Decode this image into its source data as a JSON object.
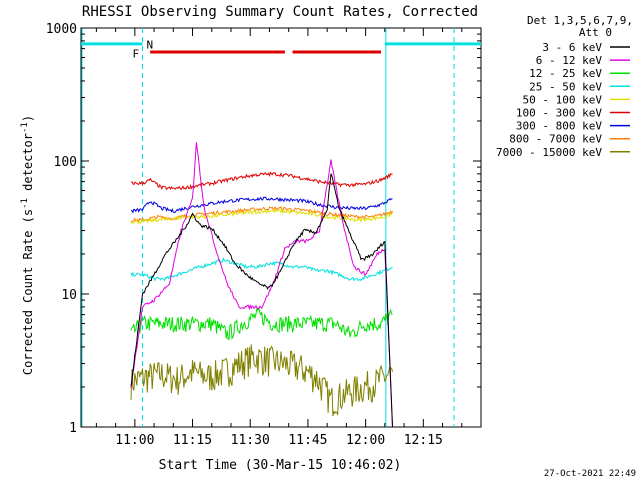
{
  "chart_data": {
    "type": "line",
    "title": "RHESSI Observing Summary Count Rates, Corrected",
    "xlabel": "Start Time (30-Mar-15 10:46:02)",
    "ylabel_main": "Corrected Count Rate (s",
    "ylabel_sup1": "-1",
    "ylabel_mid": " detector",
    "ylabel_sup2": "-1",
    "ylabel_end": ")",
    "yscale": "log",
    "ylim": [
      1,
      1000
    ],
    "xlim": [
      "10:46",
      "12:30"
    ],
    "y_ticks": [
      {
        "value": 1,
        "label": "1"
      },
      {
        "value": 10,
        "label": "10"
      },
      {
        "value": 100,
        "label": "100"
      },
      {
        "value": 1000,
        "label": "1000"
      }
    ],
    "x_ticks": [
      {
        "value": "11:00",
        "label": "11:00"
      },
      {
        "value": "11:15",
        "label": "11:15"
      },
      {
        "value": "11:30",
        "label": "11:30"
      },
      {
        "value": "11:45",
        "label": "11:45"
      },
      {
        "value": "12:00",
        "label": "12:00"
      },
      {
        "value": "12:15",
        "label": "12:15"
      }
    ],
    "legend_header": [
      "Det 1,3,5,6,7,9,",
      "Att 0"
    ],
    "legend_position": "right",
    "series": [
      {
        "name": "3 - 6 keV",
        "color": "#000000",
        "points": [
          [
            "10:59",
            2
          ],
          [
            "11:02",
            10
          ],
          [
            "11:05",
            14
          ],
          [
            "11:08",
            20
          ],
          [
            "11:11",
            26
          ],
          [
            "11:14",
            35
          ],
          [
            "11:15",
            40
          ],
          [
            "11:17",
            33
          ],
          [
            "11:20",
            31
          ],
          [
            "11:23",
            24
          ],
          [
            "11:26",
            17
          ],
          [
            "11:29",
            14
          ],
          [
            "11:32",
            12
          ],
          [
            "11:35",
            11
          ],
          [
            "11:38",
            15
          ],
          [
            "11:41",
            23
          ],
          [
            "11:44",
            30
          ],
          [
            "11:47",
            29
          ],
          [
            "11:50",
            42
          ],
          [
            "11:51",
            82
          ],
          [
            "11:53",
            45
          ],
          [
            "11:56",
            28
          ],
          [
            "11:59",
            18
          ],
          [
            "12:02",
            20
          ],
          [
            "12:05",
            25
          ],
          [
            "12:07",
            1
          ]
        ]
      },
      {
        "name": "6 - 12 keV",
        "color": "#e000e0",
        "points": [
          [
            "10:59",
            2
          ],
          [
            "11:02",
            8
          ],
          [
            "11:05",
            9
          ],
          [
            "11:09",
            12
          ],
          [
            "11:12",
            30
          ],
          [
            "11:15",
            52
          ],
          [
            "11:16",
            140
          ],
          [
            "11:18",
            45
          ],
          [
            "11:21",
            22
          ],
          [
            "11:24",
            12
          ],
          [
            "11:27",
            8
          ],
          [
            "11:30",
            8
          ],
          [
            "11:33",
            8
          ],
          [
            "11:36",
            12
          ],
          [
            "11:39",
            22
          ],
          [
            "11:42",
            25
          ],
          [
            "11:45",
            25
          ],
          [
            "11:48",
            30
          ],
          [
            "11:51",
            100
          ],
          [
            "11:54",
            35
          ],
          [
            "11:57",
            16
          ],
          [
            "12:00",
            14
          ],
          [
            "12:03",
            20
          ],
          [
            "12:05",
            22
          ],
          [
            "12:07",
            1
          ]
        ]
      },
      {
        "name": "12 - 25 keV",
        "color": "#00e000",
        "points": [
          [
            "10:59",
            5
          ],
          [
            "11:02",
            6
          ],
          [
            "11:07",
            6
          ],
          [
            "11:12",
            6
          ],
          [
            "11:16",
            6
          ],
          [
            "11:20",
            6
          ],
          [
            "11:24",
            5
          ],
          [
            "11:28",
            6
          ],
          [
            "11:32",
            7
          ],
          [
            "11:36",
            6
          ],
          [
            "11:40",
            6
          ],
          [
            "11:44",
            6
          ],
          [
            "11:48",
            6
          ],
          [
            "11:52",
            6
          ],
          [
            "11:56",
            5
          ],
          [
            "12:00",
            6
          ],
          [
            "12:04",
            6
          ],
          [
            "12:07",
            7
          ]
        ]
      },
      {
        "name": "25 - 50 keV",
        "color": "#00e0e0",
        "points": [
          [
            "10:59",
            14
          ],
          [
            "11:02",
            14
          ],
          [
            "11:05",
            13
          ],
          [
            "11:08",
            13
          ],
          [
            "11:11",
            14
          ],
          [
            "11:14",
            15
          ],
          [
            "11:17",
            16
          ],
          [
            "11:20",
            17
          ],
          [
            "11:23",
            18
          ],
          [
            "11:26",
            17
          ],
          [
            "11:29",
            16
          ],
          [
            "11:32",
            16
          ],
          [
            "11:35",
            17
          ],
          [
            "11:38",
            17
          ],
          [
            "11:41",
            16
          ],
          [
            "11:44",
            16
          ],
          [
            "11:47",
            15
          ],
          [
            "11:50",
            15
          ],
          [
            "11:53",
            14
          ],
          [
            "11:56",
            13
          ],
          [
            "11:59",
            13
          ],
          [
            "12:02",
            14
          ],
          [
            "12:05",
            15
          ],
          [
            "12:07",
            16
          ]
        ]
      },
      {
        "name": "50 - 100 keV",
        "color": "#e0e000",
        "points": [
          [
            "10:59",
            35
          ],
          [
            "11:02",
            35
          ],
          [
            "11:06",
            36
          ],
          [
            "11:10",
            37
          ],
          [
            "11:14",
            38
          ],
          [
            "11:18",
            38
          ],
          [
            "11:22",
            39
          ],
          [
            "11:26",
            40
          ],
          [
            "11:30",
            41
          ],
          [
            "11:34",
            42
          ],
          [
            "11:38",
            42
          ],
          [
            "11:42",
            41
          ],
          [
            "11:46",
            40
          ],
          [
            "11:50",
            38
          ],
          [
            "11:54",
            37
          ],
          [
            "11:58",
            36
          ],
          [
            "12:02",
            37
          ],
          [
            "12:05",
            38
          ],
          [
            "12:07",
            40
          ]
        ]
      },
      {
        "name": "100 - 300 keV",
        "color": "#e00000",
        "points": [
          [
            "10:59",
            68
          ],
          [
            "11:02",
            68
          ],
          [
            "11:04",
            72
          ],
          [
            "11:07",
            63
          ],
          [
            "11:10",
            62
          ],
          [
            "11:13",
            63
          ],
          [
            "11:16",
            65
          ],
          [
            "11:20",
            68
          ],
          [
            "11:24",
            72
          ],
          [
            "11:28",
            76
          ],
          [
            "11:32",
            79
          ],
          [
            "11:36",
            80
          ],
          [
            "11:40",
            78
          ],
          [
            "11:44",
            74
          ],
          [
            "11:48",
            70
          ],
          [
            "11:52",
            67
          ],
          [
            "11:56",
            66
          ],
          [
            "12:00",
            67
          ],
          [
            "12:04",
            72
          ],
          [
            "12:07",
            80
          ]
        ]
      },
      {
        "name": "300 - 800 keV",
        "color": "#0000e0",
        "points": [
          [
            "10:59",
            42
          ],
          [
            "11:02",
            43
          ],
          [
            "11:04",
            50
          ],
          [
            "11:07",
            44
          ],
          [
            "11:10",
            42
          ],
          [
            "11:13",
            44
          ],
          [
            "11:16",
            46
          ],
          [
            "11:20",
            48
          ],
          [
            "11:24",
            50
          ],
          [
            "11:28",
            51
          ],
          [
            "11:32",
            52
          ],
          [
            "11:36",
            52
          ],
          [
            "11:40",
            51
          ],
          [
            "11:44",
            50
          ],
          [
            "11:48",
            47
          ],
          [
            "11:52",
            45
          ],
          [
            "11:56",
            44
          ],
          [
            "12:00",
            44
          ],
          [
            "12:04",
            47
          ],
          [
            "12:07",
            52
          ]
        ]
      },
      {
        "name": "800 - 7000 keV",
        "color": "#ff8000",
        "points": [
          [
            "10:59",
            36
          ],
          [
            "11:02",
            36
          ],
          [
            "11:06",
            38
          ],
          [
            "11:10",
            37
          ],
          [
            "11:14",
            39
          ],
          [
            "11:18",
            40
          ],
          [
            "11:22",
            41
          ],
          [
            "11:26",
            42
          ],
          [
            "11:30",
            43
          ],
          [
            "11:34",
            44
          ],
          [
            "11:38",
            44
          ],
          [
            "11:42",
            43
          ],
          [
            "11:46",
            42
          ],
          [
            "11:50",
            40
          ],
          [
            "11:54",
            39
          ],
          [
            "11:58",
            38
          ],
          [
            "12:02",
            38
          ],
          [
            "12:05",
            40
          ],
          [
            "12:07",
            42
          ]
        ]
      },
      {
        "name": "7000 - 15000 keV",
        "color": "#808000",
        "points": [
          [
            "10:59",
            2.2
          ],
          [
            "11:03",
            2.4
          ],
          [
            "11:07",
            2.5
          ],
          [
            "11:11",
            2.3
          ],
          [
            "11:15",
            2.6
          ],
          [
            "11:19",
            2.4
          ],
          [
            "11:23",
            2.6
          ],
          [
            "11:27",
            3.0
          ],
          [
            "11:31",
            3.4
          ],
          [
            "11:35",
            3.2
          ],
          [
            "11:39",
            3.0
          ],
          [
            "11:43",
            2.8
          ],
          [
            "11:47",
            2.4
          ],
          [
            "11:51",
            1.6
          ],
          [
            "11:55",
            1.8
          ],
          [
            "11:59",
            2.0
          ],
          [
            "12:03",
            2.2
          ],
          [
            "12:07",
            2.6
          ]
        ]
      }
    ],
    "annotations": [
      {
        "label": "N",
        "color": "#00e0e0"
      },
      {
        "label": "F",
        "color": "#e00000"
      }
    ],
    "night_bars": [
      [
        "10:46",
        "11:02"
      ],
      [
        "12:05",
        "12:30"
      ]
    ],
    "night_boundaries_dashed": [
      "11:02",
      "12:23"
    ],
    "night_boundaries_solid": [
      "10:46",
      "12:05"
    ],
    "flare_bars": [
      [
        "11:04",
        "11:39"
      ],
      [
        "11:41",
        "12:04"
      ]
    ],
    "timestamp": "27-Oct-2021 22:49"
  }
}
